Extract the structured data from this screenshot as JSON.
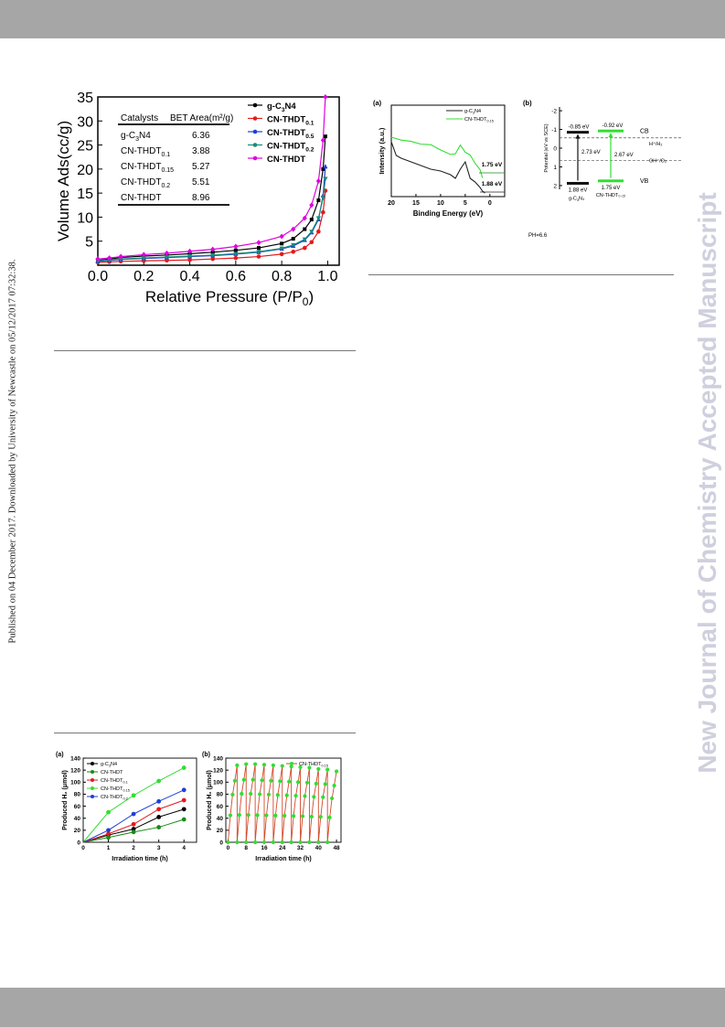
{
  "page": {
    "side_left_text": "Published on 04 December 2017. Downloaded by University of Newcastle on 05/12/2017 07:32:38.",
    "side_right_text": "New Journal of Chemistry Accepted Manuscript"
  },
  "colors": {
    "band": "#a6a6a6",
    "g_C3N4": "#000000",
    "CN_THDT0_1": "#e31a1c",
    "CN_THDT0_5": "#1f3fd6",
    "CN_THDT0_2": "#1a8a7a",
    "CN_THDT": "#e000e0",
    "green": "#33dd33",
    "dark_green": "#1a8a1a"
  },
  "bet_table": {
    "header": [
      "Catalysts",
      "BET Area(m²/g)"
    ],
    "rows": [
      {
        "name": "g-C3N4",
        "area": "6.36"
      },
      {
        "name": "CN-THDT0.1",
        "area": "3.88"
      },
      {
        "name": "CN-THDT0.15",
        "area": "5.27"
      },
      {
        "name": "CN-THDT0.2",
        "area": "5.51"
      },
      {
        "name": "CN-THDT",
        "area": "8.96"
      }
    ]
  },
  "chart_data": [
    {
      "type": "line",
      "id": "bet-isotherm",
      "xlabel": "Relative Pressure (P/P0)",
      "ylabel": "Volume Ads(cc/g)",
      "xlim": [
        0,
        1.05
      ],
      "ylim": [
        0,
        35
      ],
      "xticks": [
        "0.0",
        "0.2",
        "0.4",
        "0.6",
        "0.8",
        "1.0"
      ],
      "yticks": [
        "5",
        "10",
        "15",
        "20",
        "25",
        "30",
        "35"
      ],
      "legend": "top-right",
      "x": [
        0.0,
        0.05,
        0.1,
        0.2,
        0.3,
        0.4,
        0.5,
        0.6,
        0.7,
        0.8,
        0.85,
        0.9,
        0.93,
        0.96,
        0.98,
        0.99
      ],
      "series": [
        {
          "name": "g-C3N4",
          "values": [
            1.0,
            1.3,
            1.6,
            1.9,
            2.1,
            2.4,
            2.7,
            3.1,
            3.6,
            4.5,
            5.5,
            7.5,
            9.5,
            13.5,
            20.0,
            26.8
          ]
        },
        {
          "name": "CN-THDT0.1",
          "values": [
            0.6,
            0.7,
            0.8,
            0.9,
            1.0,
            1.1,
            1.3,
            1.5,
            1.8,
            2.3,
            2.8,
            3.6,
            4.8,
            7.0,
            11.0,
            15.5
          ]
        },
        {
          "name": "CN-THDT0.5",
          "values": [
            0.8,
            1.0,
            1.2,
            1.4,
            1.6,
            1.8,
            2.0,
            2.3,
            2.7,
            3.4,
            4.0,
            5.2,
            6.8,
            9.5,
            14.5,
            20.5
          ]
        },
        {
          "name": "CN-THDT0.2",
          "values": [
            0.9,
            1.1,
            1.3,
            1.5,
            1.7,
            1.9,
            2.1,
            2.4,
            2.8,
            3.5,
            4.2,
            5.4,
            7.0,
            9.8,
            14.0,
            18.0
          ]
        },
        {
          "name": "CN-THDT",
          "values": [
            1.3,
            1.5,
            1.8,
            2.2,
            2.5,
            2.9,
            3.3,
            3.9,
            4.7,
            6.0,
            7.5,
            9.8,
            12.5,
            17.5,
            26.0,
            35.0
          ]
        }
      ]
    },
    {
      "type": "line",
      "id": "vb-xps",
      "panel": "(a)",
      "xlabel": "Binding Energy (eV)",
      "ylabel": "Intensity (a.u.)",
      "xticks": [
        "20",
        "15",
        "10",
        "5",
        "0"
      ],
      "annotations": [
        "1.75 eV",
        "1.88 eV"
      ],
      "series": [
        {
          "name": "g-C3N4"
        },
        {
          "name": "CN-THDT0.15"
        }
      ]
    },
    {
      "type": "diagram",
      "id": "band-structure",
      "panel": "(b)",
      "ylabel": "Potential (eV vs SCE)",
      "yticks": [
        "-2",
        "-1",
        "0",
        "1",
        "2"
      ],
      "labels": {
        "cb": "CB",
        "vb": "VB",
        "cb_g": "-0.85 eV",
        "cb_t": "-0.92 eV",
        "gap_g": "2.73 eV",
        "gap_t": "2.67 eV",
        "vb_g": "1.88 eV",
        "vb_t": "1.75 eV",
        "h": "H⁺/H₂",
        "oh": "OH⁻/O₂",
        "name_g": "g-C₃N₄",
        "name_t": "CN-THDT₀.₁₅",
        "ph": "PH=6.6"
      }
    },
    {
      "type": "line",
      "id": "h2-production",
      "panel": "(a)",
      "xlabel": "Irradiation time (h)",
      "ylabel": "Produced H₂ (μmol)",
      "xticks": [
        "0",
        "1",
        "2",
        "3",
        "4"
      ],
      "yticks": [
        "0",
        "20",
        "40",
        "60",
        "80",
        "100",
        "120",
        "140"
      ],
      "xlim": [
        0,
        4.5
      ],
      "ylim": [
        0,
        140
      ],
      "x": [
        0,
        1,
        2,
        3,
        4
      ],
      "series": [
        {
          "name": "g-C3N4",
          "values": [
            0,
            12,
            22,
            42,
            55
          ]
        },
        {
          "name": "CN-THDT",
          "values": [
            0,
            8,
            17,
            25,
            38
          ]
        },
        {
          "name": "CN-THDT0.1",
          "values": [
            0,
            14,
            30,
            55,
            70
          ]
        },
        {
          "name": "CN-THDT0.15",
          "values": [
            0,
            50,
            78,
            102,
            124
          ]
        },
        {
          "name": "CN-THDT0.2",
          "values": [
            0,
            20,
            47,
            68,
            87
          ]
        }
      ]
    },
    {
      "type": "line",
      "id": "h2-cycling",
      "panel": "(b)",
      "xlabel": "Irradiation time (h)",
      "ylabel": "Produced H₂ (μmol)",
      "xticks": [
        "0",
        "8",
        "16",
        "24",
        "32",
        "40",
        "48"
      ],
      "yticks": [
        "0",
        "20",
        "40",
        "60",
        "80",
        "100",
        "120",
        "140"
      ],
      "xlim": [
        -1,
        50
      ],
      "ylim": [
        0,
        140
      ],
      "legend": "top-right",
      "series": [
        {
          "name": "CN-THDT0.15",
          "cycle_peaks": [
            128,
            130,
            130,
            129,
            128,
            127,
            126,
            125,
            124,
            122,
            121,
            118
          ]
        }
      ]
    }
  ]
}
